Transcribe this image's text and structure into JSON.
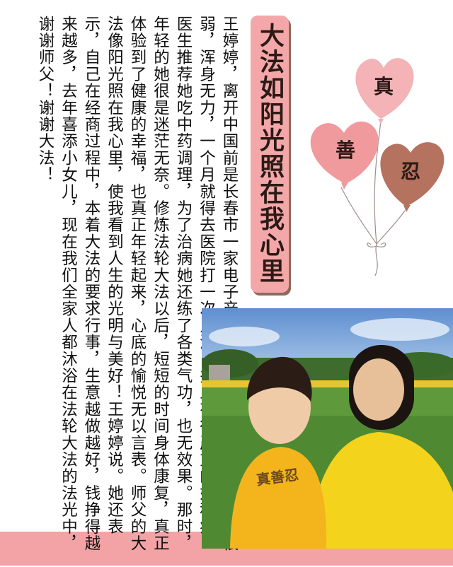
{
  "title": "大法如阳光照在我心里",
  "balloons": [
    {
      "label": "真",
      "color": "#f4b3b6"
    },
    {
      "label": "善",
      "color": "#f09a9e"
    },
    {
      "label": "忍",
      "color": "#b5725f"
    }
  ],
  "body": "王婷婷，离开中国前是长春市一家电子产品公司老板。得法前，她身体很弱，浑身无力，一个月就得去医院打一次点滴，并且有很严重的妇科病。医生推荐她吃中药调理，为了治病她还练了各类气功，也无效果。那时，年轻的她很是迷茫无奈。修炼法轮大法以后，短短的时间身体康复，真正体验到了健康的幸福，也真正年轻起来，心底的愉悦无以言表。师父的大法像阳光照在我心里，使我看到人生的光明与美好！王婷婷说。她还表示，自己在经商过程中，本着大法的要求行事，生意越做越好，钱挣得越来越多，去年喜添小女儿，现在我们全家人都沐浴在法轮大法的法光中，谢谢师父！谢谢大法！",
  "photo": {
    "shirt_text": "真善忍"
  }
}
